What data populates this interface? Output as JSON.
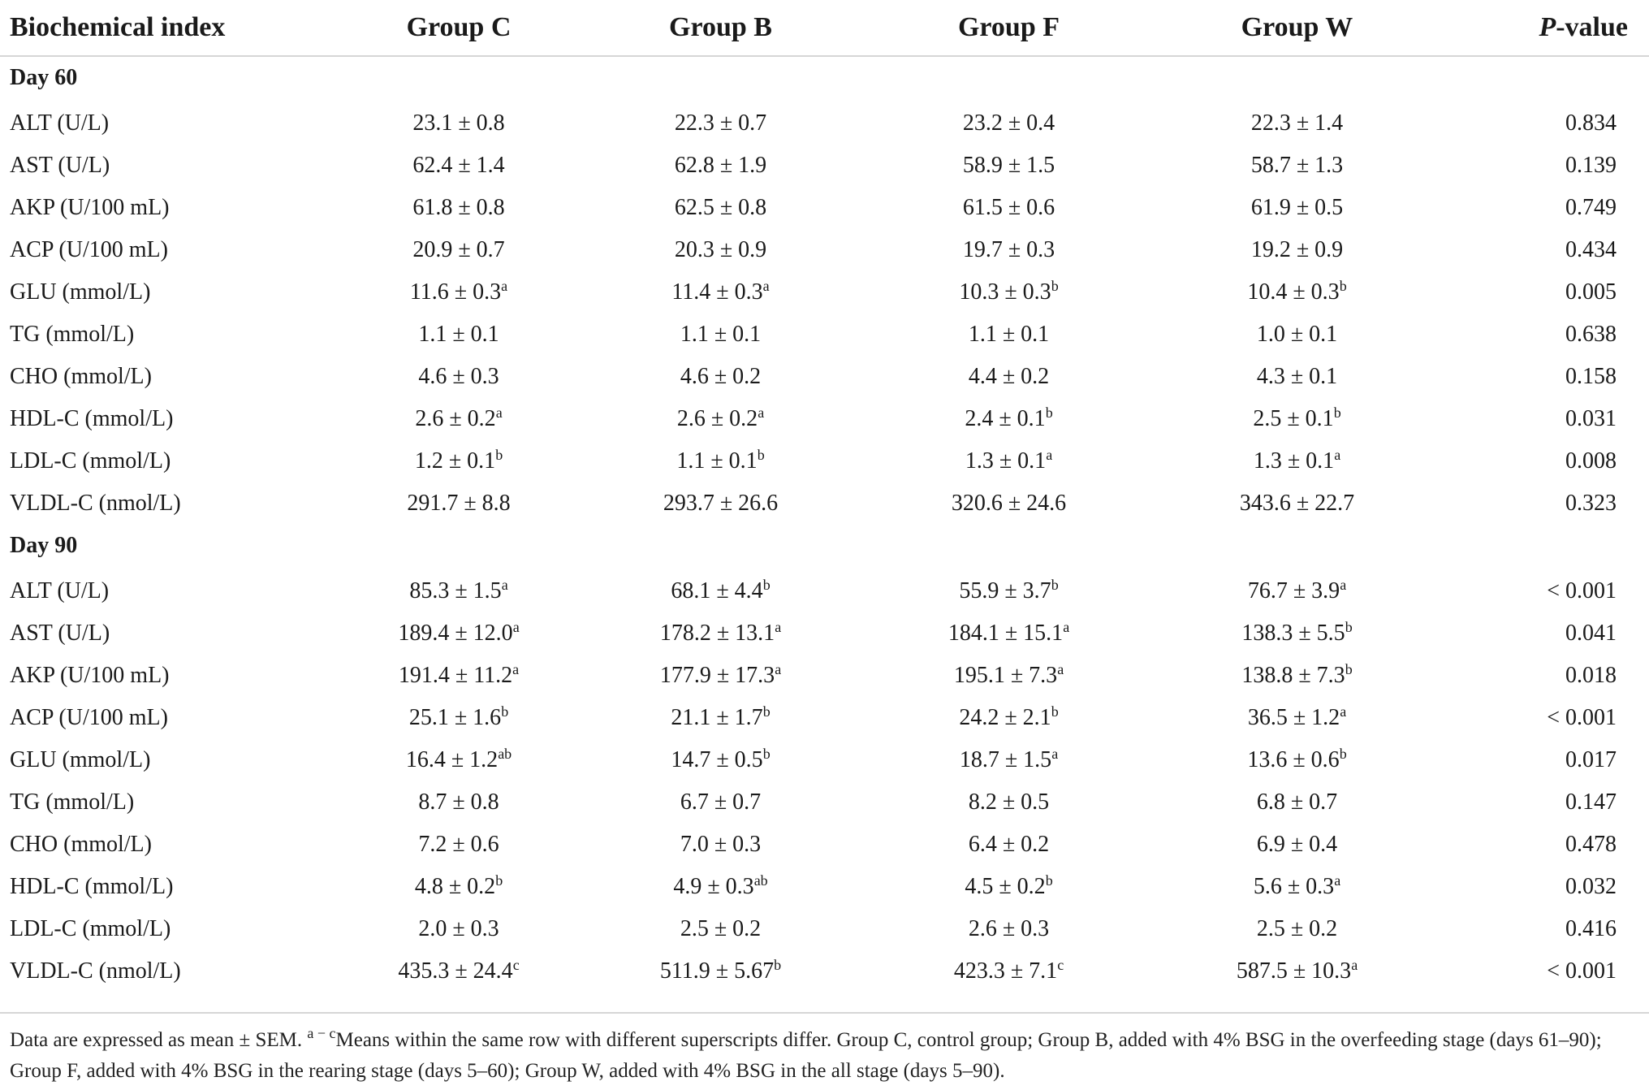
{
  "header": {
    "col_index": "Biochemical index",
    "col_c": "Group C",
    "col_b": "Group B",
    "col_f": "Group F",
    "col_w": "Group W",
    "col_p_italic": "P",
    "col_p_rest": "-value"
  },
  "sections": [
    {
      "title": "Day 60",
      "rows": [
        {
          "label": "ALT (U/L)",
          "c": "23.1 ± 0.8",
          "c_sup": "",
          "b": "22.3 ± 0.7",
          "b_sup": "",
          "f": "23.2 ± 0.4",
          "f_sup": "",
          "w": "22.3 ± 1.4",
          "w_sup": "",
          "p": "0.834"
        },
        {
          "label": "AST (U/L)",
          "c": "62.4 ± 1.4",
          "c_sup": "",
          "b": "62.8 ± 1.9",
          "b_sup": "",
          "f": "58.9 ± 1.5",
          "f_sup": "",
          "w": "58.7 ± 1.3",
          "w_sup": "",
          "p": "0.139"
        },
        {
          "label": "AKP (U/100 mL)",
          "c": "61.8 ± 0.8",
          "c_sup": "",
          "b": "62.5 ± 0.8",
          "b_sup": "",
          "f": "61.5 ± 0.6",
          "f_sup": "",
          "w": "61.9 ± 0.5",
          "w_sup": "",
          "p": "0.749"
        },
        {
          "label": "ACP (U/100 mL)",
          "c": "20.9 ± 0.7",
          "c_sup": "",
          "b": "20.3 ± 0.9",
          "b_sup": "",
          "f": "19.7 ± 0.3",
          "f_sup": "",
          "w": "19.2 ± 0.9",
          "w_sup": "",
          "p": "0.434"
        },
        {
          "label": "GLU (mmol/L)",
          "c": "11.6 ± 0.3",
          "c_sup": "a",
          "b": "11.4 ± 0.3",
          "b_sup": "a",
          "f": "10.3 ± 0.3",
          "f_sup": "b",
          "w": "10.4 ± 0.3",
          "w_sup": "b",
          "p": "0.005"
        },
        {
          "label": "TG (mmol/L)",
          "c": "1.1 ± 0.1",
          "c_sup": "",
          "b": "1.1 ± 0.1",
          "b_sup": "",
          "f": "1.1 ± 0.1",
          "f_sup": "",
          "w": "1.0 ± 0.1",
          "w_sup": "",
          "p": "0.638"
        },
        {
          "label": "CHO (mmol/L)",
          "c": "4.6 ± 0.3",
          "c_sup": "",
          "b": "4.6 ± 0.2",
          "b_sup": "",
          "f": "4.4 ± 0.2",
          "f_sup": "",
          "w": "4.3 ± 0.1",
          "w_sup": "",
          "p": "0.158"
        },
        {
          "label": "HDL-C (mmol/L)",
          "c": "2.6 ± 0.2",
          "c_sup": "a",
          "b": "2.6 ± 0.2",
          "b_sup": "a",
          "f": "2.4 ± 0.1",
          "f_sup": "b",
          "w": "2.5 ± 0.1",
          "w_sup": "b",
          "p": "0.031"
        },
        {
          "label": "LDL-C (mmol/L)",
          "c": "1.2 ± 0.1",
          "c_sup": "b",
          "b": "1.1 ± 0.1",
          "b_sup": "b",
          "f": "1.3 ± 0.1",
          "f_sup": "a",
          "w": "1.3 ± 0.1",
          "w_sup": "a",
          "p": "0.008"
        },
        {
          "label": "VLDL-C (nmol/L)",
          "c": "291.7 ± 8.8",
          "c_sup": "",
          "b": "293.7 ± 26.6",
          "b_sup": "",
          "f": "320.6 ± 24.6",
          "f_sup": "",
          "w": "343.6 ± 22.7",
          "w_sup": "",
          "p": "0.323"
        }
      ]
    },
    {
      "title": "Day 90",
      "rows": [
        {
          "label": "ALT (U/L)",
          "c": "85.3 ± 1.5",
          "c_sup": "a",
          "b": "68.1 ± 4.4",
          "b_sup": "b",
          "f": "55.9 ± 3.7",
          "f_sup": "b",
          "w": "76.7 ± 3.9",
          "w_sup": "a",
          "p": "< 0.001"
        },
        {
          "label": "AST (U/L)",
          "c": "189.4 ± 12.0",
          "c_sup": "a",
          "b": "178.2 ± 13.1",
          "b_sup": "a",
          "f": "184.1 ± 15.1",
          "f_sup": "a",
          "w": "138.3 ± 5.5",
          "w_sup": "b",
          "p": "0.041"
        },
        {
          "label": "AKP (U/100 mL)",
          "c": "191.4 ± 11.2",
          "c_sup": "a",
          "b": "177.9 ± 17.3",
          "b_sup": "a",
          "f": "195.1 ± 7.3",
          "f_sup": "a",
          "w": "138.8 ± 7.3",
          "w_sup": "b",
          "p": "0.018"
        },
        {
          "label": "ACP (U/100 mL)",
          "c": "25.1 ± 1.6",
          "c_sup": "b",
          "b": "21.1 ± 1.7",
          "b_sup": "b",
          "f": "24.2 ± 2.1",
          "f_sup": "b",
          "w": "36.5 ± 1.2",
          "w_sup": "a",
          "p": "< 0.001"
        },
        {
          "label": "GLU (mmol/L)",
          "c": "16.4 ± 1.2",
          "c_sup": "ab",
          "b": "14.7 ± 0.5",
          "b_sup": "b",
          "f": "18.7 ± 1.5",
          "f_sup": "a",
          "w": "13.6 ± 0.6",
          "w_sup": "b",
          "p": "0.017"
        },
        {
          "label": "TG (mmol/L)",
          "c": "8.7 ± 0.8",
          "c_sup": "",
          "b": "6.7 ± 0.7",
          "b_sup": "",
          "f": "8.2 ± 0.5",
          "f_sup": "",
          "w": "6.8 ± 0.7",
          "w_sup": "",
          "p": "0.147"
        },
        {
          "label": "CHO (mmol/L)",
          "c": "7.2 ± 0.6",
          "c_sup": "",
          "b": "7.0 ± 0.3",
          "b_sup": "",
          "f": "6.4 ± 0.2",
          "f_sup": "",
          "w": "6.9 ± 0.4",
          "w_sup": "",
          "p": "0.478"
        },
        {
          "label": "HDL-C (mmol/L)",
          "c": "4.8 ± 0.2",
          "c_sup": "b",
          "b": "4.9 ± 0.3",
          "b_sup": "ab",
          "f": "4.5 ± 0.2",
          "f_sup": "b",
          "w": "5.6 ± 0.3",
          "w_sup": "a",
          "p": "0.032"
        },
        {
          "label": "LDL-C (mmol/L)",
          "c": "2.0 ± 0.3",
          "c_sup": "",
          "b": "2.5 ± 0.2",
          "b_sup": "",
          "f": "2.6 ± 0.3",
          "f_sup": "",
          "w": "2.5 ± 0.2",
          "w_sup": "",
          "p": "0.416"
        },
        {
          "label": "VLDL-C (nmol/L)",
          "c": "435.3 ± 24.4",
          "c_sup": "c",
          "b": "511.9 ± 5.67",
          "b_sup": "b",
          "f": "423.3 ± 7.1",
          "f_sup": "c",
          "w": "587.5 ± 10.3",
          "w_sup": "a",
          "p": "< 0.001"
        }
      ]
    }
  ],
  "footnote": {
    "lead": "Data are expressed as mean ± SEM. ",
    "sup": "a − c",
    "text": "Means within the same row with different superscripts differ. Group C, control group; Group B, added with 4% BSG in the overfeeding stage (days 61–90); Group F, added with 4% BSG in the rearing stage (days 5–60); Group W, added with 4% BSG in the all stage (days 5–90)."
  }
}
